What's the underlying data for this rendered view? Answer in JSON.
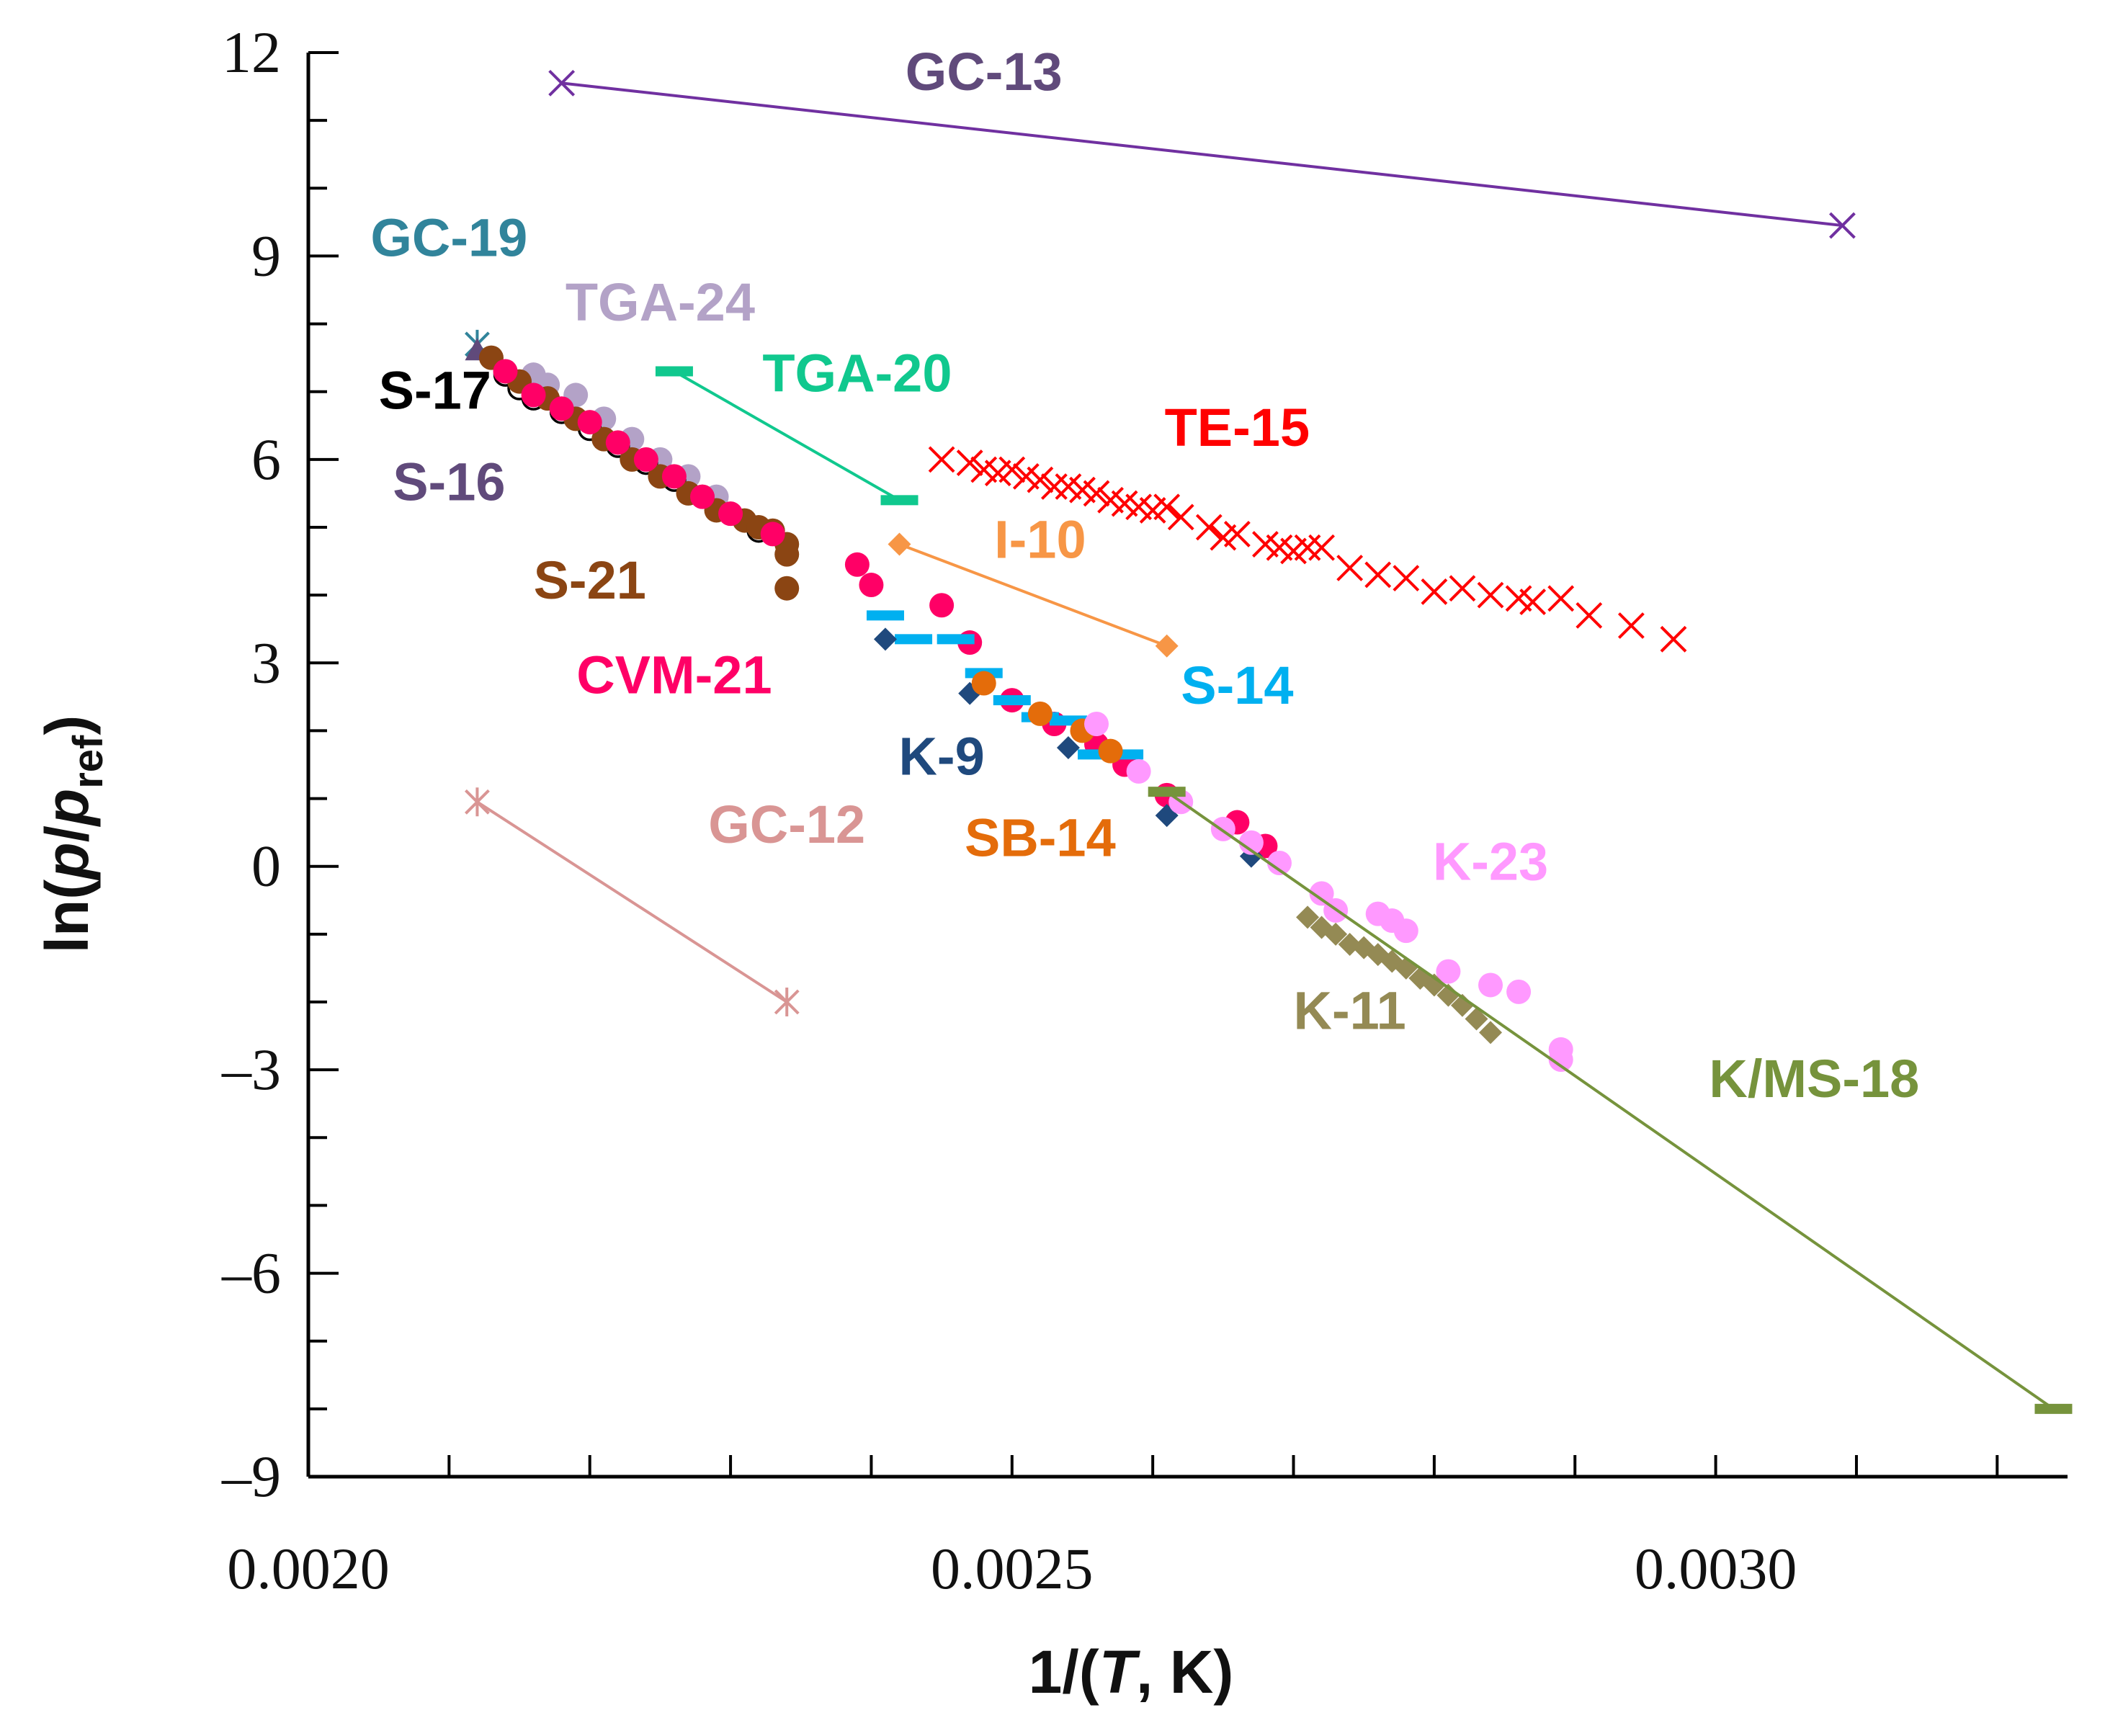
{
  "chart_data": {
    "type": "scatter",
    "title": "",
    "xlabel": {
      "prefix": "1/(",
      "italic": "T",
      "suffix": ", K)"
    },
    "ylabel": {
      "prefix": "ln(",
      "p1": "p",
      "slash": "/",
      "p2": "p",
      "sub": "ref",
      "suffix": ")"
    },
    "xlim": [
      0.002,
      0.00325
    ],
    "ylim": [
      -9,
      12
    ],
    "x_ticks": [
      {
        "value": 0.002,
        "label": "0.0020"
      },
      {
        "value": 0.0025,
        "label": "0.0025"
      },
      {
        "value": 0.003,
        "label": "0.0030"
      }
    ],
    "y_ticks": [
      {
        "value": 12,
        "label": "12"
      },
      {
        "value": 9,
        "label": "9"
      },
      {
        "value": 6,
        "label": "6"
      },
      {
        "value": 3,
        "label": "3"
      },
      {
        "value": 0,
        "label": "0"
      },
      {
        "value": -3,
        "label": "–3"
      },
      {
        "value": -6,
        "label": "–6"
      },
      {
        "value": -9,
        "label": "–9"
      }
    ],
    "x_minor_step": 0.0001,
    "y_minor_step": 1,
    "series": [
      {
        "name": "GC-13",
        "color": "#7030A0",
        "label_color": "#604A7B",
        "marker": "x",
        "line": true,
        "label_at": [
          0.00248,
          11.45
        ],
        "x": [
          0.00218,
          0.00309
        ],
        "y": [
          11.55,
          9.45
        ]
      },
      {
        "name": "GC-19",
        "color": "#31849B",
        "marker": "star",
        "line": false,
        "label_at": [
          0.0021,
          9.0
        ],
        "x": [
          0.00212
        ],
        "y": [
          7.7
        ]
      },
      {
        "name": "TGA-24",
        "color": "#B3A2C7",
        "marker": "circle",
        "line": false,
        "label_at": [
          0.00225,
          8.05
        ],
        "x": [
          0.00214,
          0.00216,
          0.00217,
          0.00219,
          0.00221,
          0.00223,
          0.00225,
          0.00227,
          0.00229
        ],
        "y": [
          7.3,
          7.25,
          7.1,
          6.95,
          6.6,
          6.3,
          6.0,
          5.75,
          5.45
        ]
      },
      {
        "name": "TGA-20",
        "color": "#10C88E",
        "marker": "dash",
        "line": true,
        "label_at": [
          0.00239,
          7.0
        ],
        "x": [
          0.00226,
          0.00242
        ],
        "y": [
          7.3,
          5.4
        ]
      },
      {
        "name": "S-17",
        "color": "#000000",
        "marker": "open-circle",
        "line": false,
        "label_at": [
          0.00209,
          6.75
        ],
        "x": [
          0.00214,
          0.00215,
          0.00216,
          0.00218,
          0.0022,
          0.00222,
          0.00224,
          0.00226,
          0.00228,
          0.0023,
          0.00232
        ],
        "y": [
          7.25,
          7.05,
          6.9,
          6.7,
          6.45,
          6.2,
          5.95,
          5.7,
          5.45,
          5.2,
          4.95
        ]
      },
      {
        "name": "TE-15",
        "color": "#FF0000",
        "marker": "x",
        "line": false,
        "label_at": [
          0.00266,
          6.2
        ],
        "x": [
          0.00245,
          0.00247,
          0.00248,
          0.00249,
          0.0025,
          0.00251,
          0.00252,
          0.00253,
          0.00254,
          0.00255,
          0.00256,
          0.00257,
          0.00258,
          0.00259,
          0.0026,
          0.00261,
          0.00262,
          0.00264,
          0.00265,
          0.00266,
          0.00268,
          0.00269,
          0.0027,
          0.00271,
          0.00272,
          0.00274,
          0.00276,
          0.00278,
          0.0028,
          0.00282,
          0.00284,
          0.00286,
          0.00287,
          0.00289,
          0.00291,
          0.00294,
          0.00297
        ],
        "y": [
          6.0,
          5.95,
          5.85,
          5.8,
          5.85,
          5.75,
          5.7,
          5.6,
          5.6,
          5.55,
          5.5,
          5.4,
          5.35,
          5.3,
          5.25,
          5.3,
          5.15,
          5.0,
          4.85,
          4.9,
          4.75,
          4.7,
          4.65,
          4.7,
          4.7,
          4.4,
          4.3,
          4.25,
          4.05,
          4.1,
          4.0,
          3.95,
          3.9,
          3.95,
          3.7,
          3.55,
          3.35
        ]
      },
      {
        "name": "S-16",
        "color": "#604A7B",
        "marker": "triangle",
        "line": false,
        "label_at": [
          0.0021,
          5.4
        ],
        "x": [
          0.00212
        ],
        "y": [
          7.6
        ]
      },
      {
        "name": "I-10",
        "color": "#F79646",
        "marker": "diamond",
        "line": true,
        "label_at": [
          0.00252,
          4.55
        ],
        "x": [
          0.00242,
          0.00261
        ],
        "y": [
          4.75,
          3.25
        ]
      },
      {
        "name": "S-21",
        "color": "#8B4513",
        "marker": "circle",
        "line": false,
        "label_at": [
          0.0022,
          3.95
        ],
        "x": [
          0.00213,
          0.00215,
          0.00217,
          0.00219,
          0.00221,
          0.00223,
          0.00225,
          0.00227,
          0.00229,
          0.00231,
          0.00232,
          0.00233,
          0.00234,
          0.00234,
          0.00234
        ],
        "y": [
          7.5,
          7.15,
          6.9,
          6.6,
          6.3,
          6.0,
          5.75,
          5.5,
          5.25,
          5.1,
          5.0,
          4.95,
          4.75,
          4.6,
          4.1
        ]
      },
      {
        "name": "CVM-21",
        "color": "#FF0066",
        "marker": "circle",
        "line": false,
        "label_at": [
          0.00226,
          2.55
        ],
        "x": [
          0.00214,
          0.00216,
          0.00218,
          0.0022,
          0.00222,
          0.00224,
          0.00226,
          0.00228,
          0.0023,
          0.00233,
          0.00239,
          0.0024,
          0.00245,
          0.00247,
          0.0025,
          0.00253,
          0.00256,
          0.00258,
          0.00261,
          0.00266,
          0.00268
        ],
        "y": [
          7.3,
          6.95,
          6.75,
          6.55,
          6.25,
          6.0,
          5.75,
          5.45,
          5.2,
          4.9,
          4.45,
          4.15,
          3.85,
          3.3,
          2.45,
          2.1,
          1.8,
          1.5,
          1.05,
          0.65,
          0.3
        ]
      },
      {
        "name": "S-14",
        "color": "#00B0F0",
        "marker": "dash",
        "line": false,
        "label_at": [
          0.00266,
          2.4
        ],
        "x": [
          0.00241,
          0.00243,
          0.00246,
          0.00248,
          0.0025,
          0.00252,
          0.00254,
          0.00256,
          0.00258
        ],
        "y": [
          3.7,
          3.35,
          3.35,
          2.85,
          2.45,
          2.2,
          2.15,
          1.65,
          1.65
        ]
      },
      {
        "name": "K-9",
        "color": "#1F497D",
        "marker": "diamond",
        "line": false,
        "label_at": [
          0.00245,
          1.35
        ],
        "x": [
          0.00241,
          0.00247,
          0.00254,
          0.00261,
          0.00267
        ],
        "y": [
          3.35,
          2.55,
          1.75,
          0.75,
          0.15
        ]
      },
      {
        "name": "SB-14",
        "color": "#E46C0A",
        "marker": "circle",
        "line": false,
        "label_at": [
          0.00252,
          0.15
        ],
        "x": [
          0.00248,
          0.00252,
          0.00255,
          0.00257
        ],
        "y": [
          2.7,
          2.25,
          2.0,
          1.7
        ]
      },
      {
        "name": "K-23",
        "color": "#FF99FF",
        "marker": "circle",
        "line": false,
        "label_at": [
          0.00284,
          -0.2
        ],
        "x": [
          0.00256,
          0.00259,
          0.00262,
          0.00265,
          0.00267,
          0.00269,
          0.00272,
          0.00273,
          0.00276,
          0.00277,
          0.00278,
          0.00281,
          0.00284,
          0.00286,
          0.00289,
          0.00289
        ],
        "y": [
          2.1,
          1.4,
          0.95,
          0.55,
          0.35,
          0.05,
          -0.4,
          -0.65,
          -0.7,
          -0.8,
          -0.95,
          -1.55,
          -1.75,
          -1.85,
          -2.7,
          -2.85
        ]
      },
      {
        "name": "GC-12",
        "color": "#D99594",
        "marker": "star",
        "line": true,
        "label_at": [
          0.00234,
          0.35
        ],
        "x": [
          0.00212,
          0.00234
        ],
        "y": [
          0.95,
          -2.0
        ]
      },
      {
        "name": "K-11",
        "color": "#948A54",
        "marker": "diamond",
        "line": false,
        "label_at": [
          0.00274,
          -2.4
        ],
        "x": [
          0.00271,
          0.00272,
          0.00273,
          0.00274,
          0.00275,
          0.00276,
          0.00277,
          0.00278,
          0.00279,
          0.0028,
          0.00281,
          0.00282,
          0.00283,
          0.00284
        ],
        "y": [
          -0.75,
          -0.9,
          -1.0,
          -1.15,
          -1.2,
          -1.3,
          -1.4,
          -1.5,
          -1.65,
          -1.75,
          -1.9,
          -2.05,
          -2.25,
          -2.45
        ]
      },
      {
        "name": "K/MS-18",
        "color": "#76933C",
        "marker": "dash",
        "line": true,
        "label_at": [
          0.00307,
          -3.4
        ],
        "x": [
          0.00261,
          0.00324
        ],
        "y": [
          1.1,
          -8.0
        ]
      }
    ]
  }
}
